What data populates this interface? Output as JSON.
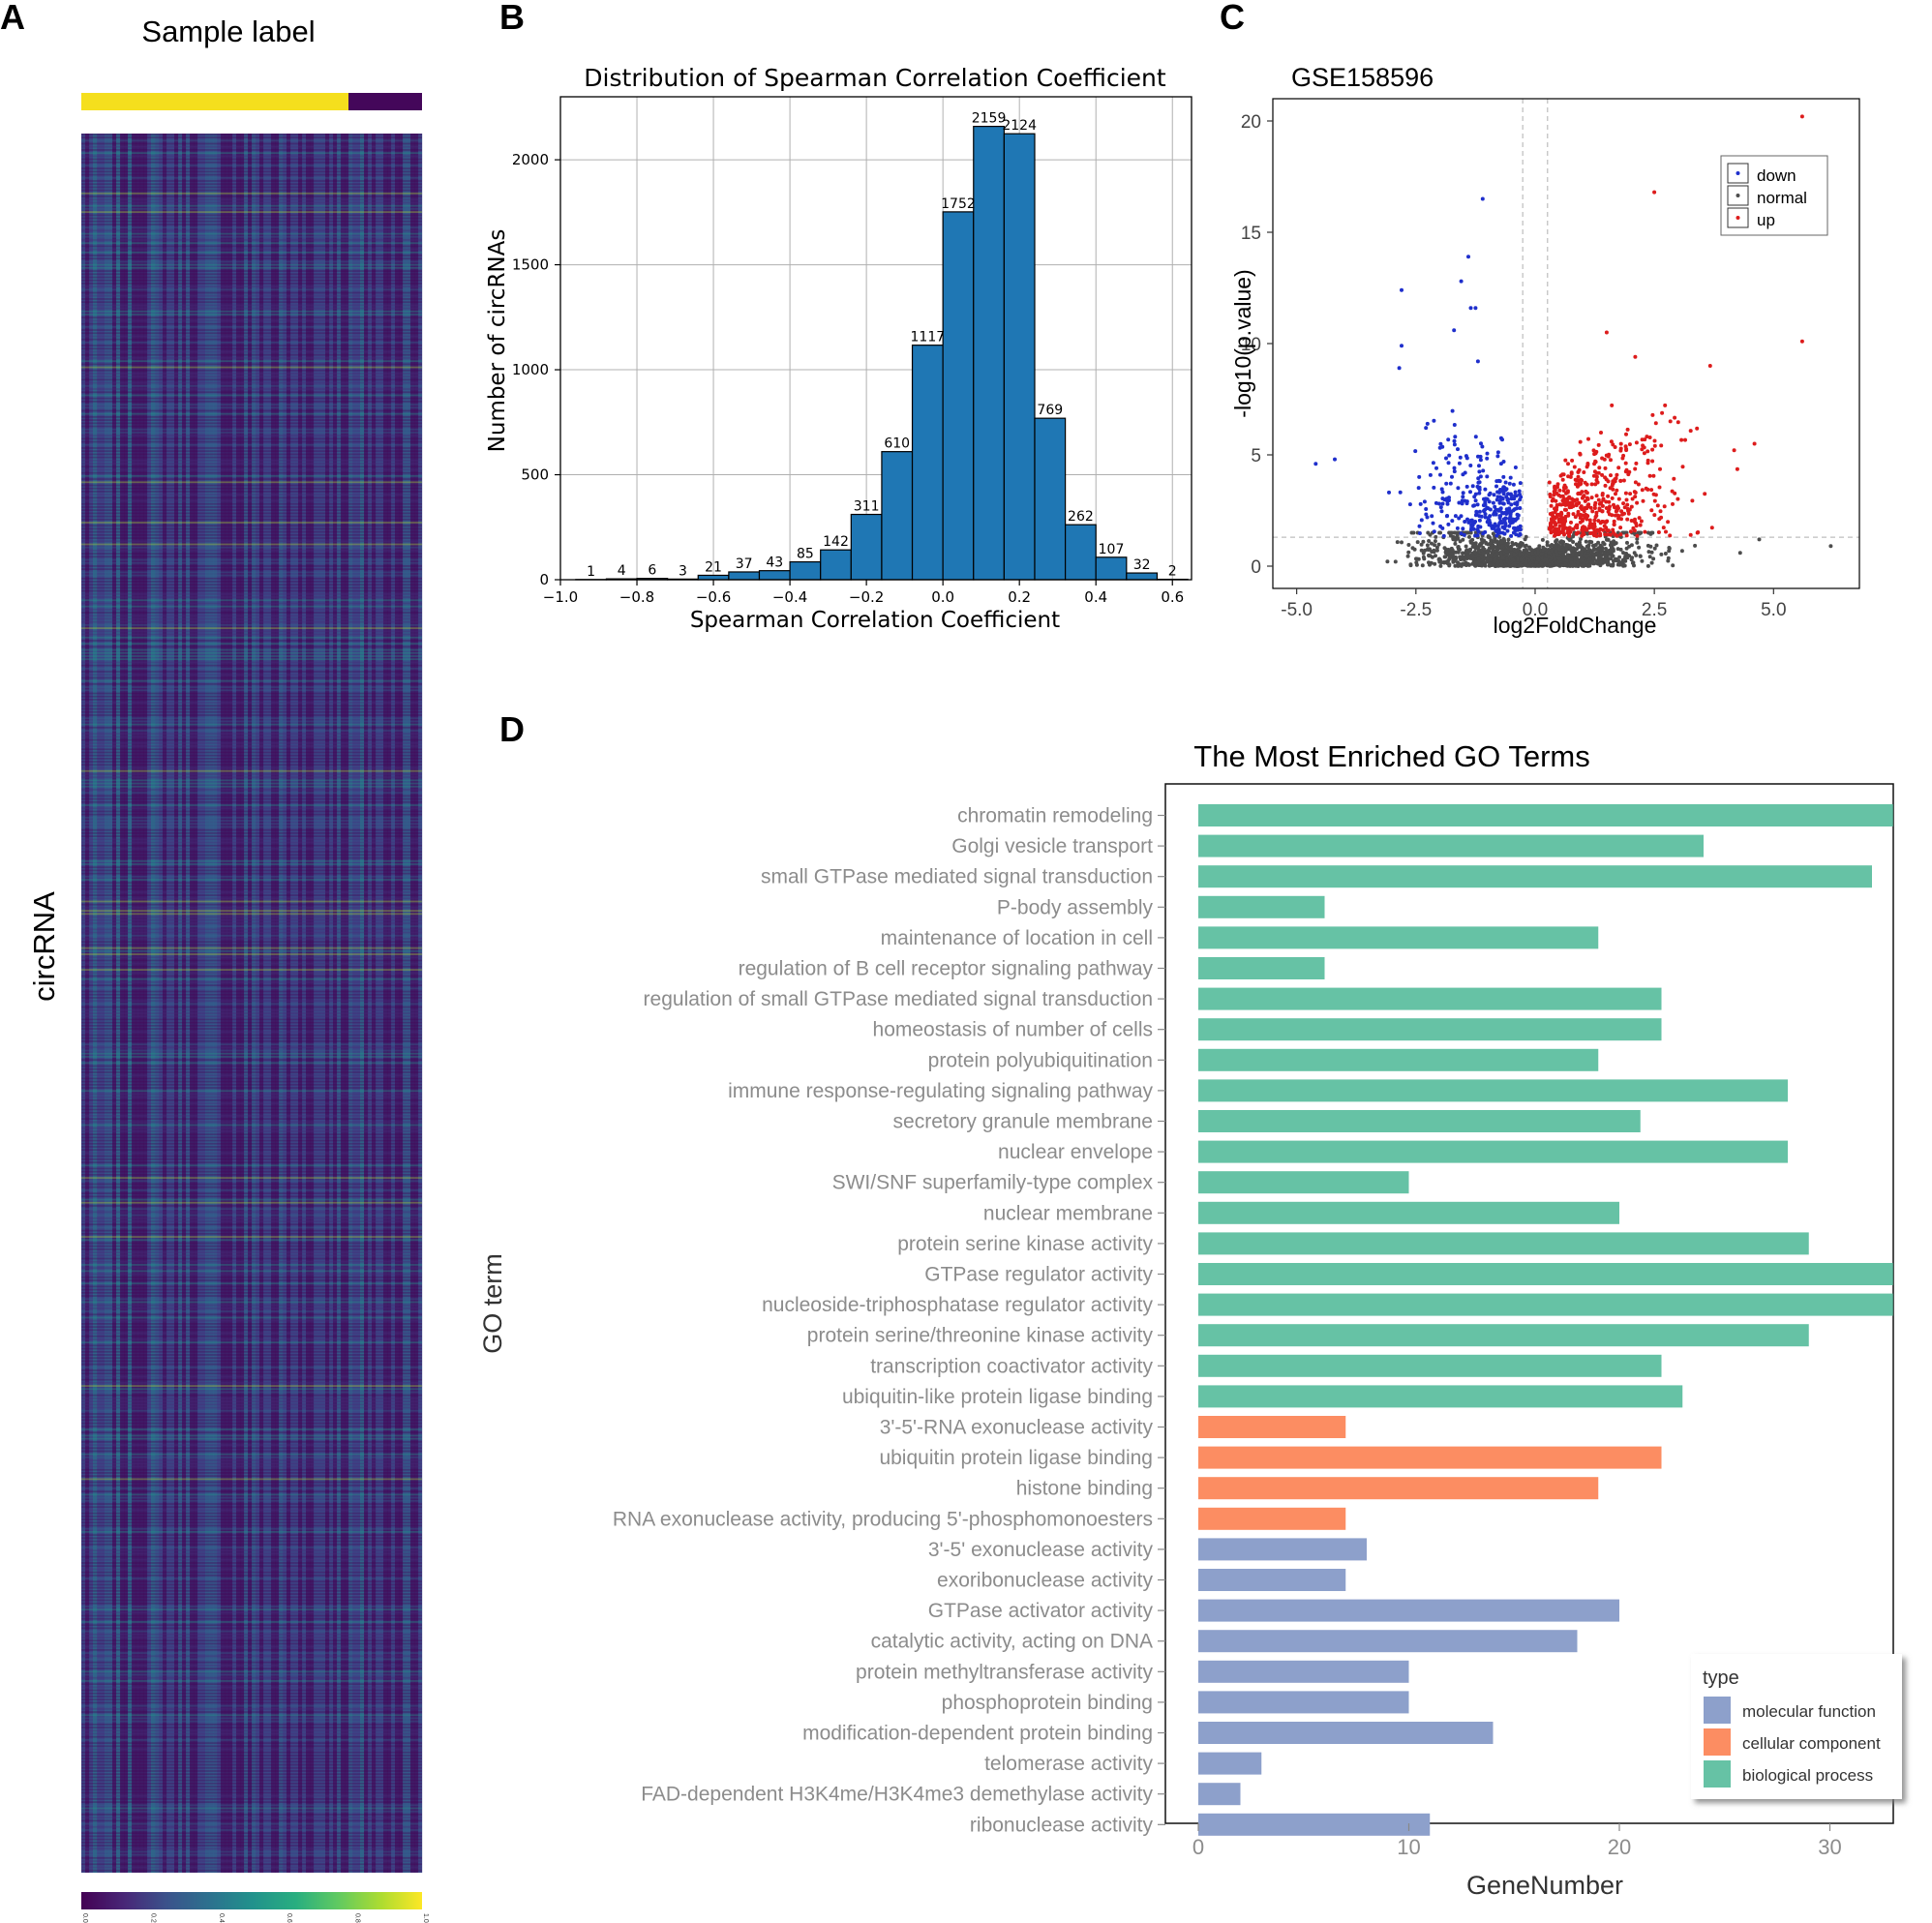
{
  "panel_labels": {
    "a": "A",
    "b": "B",
    "c": "C",
    "d": "D"
  },
  "colors": {
    "label_yellow": "#f5df1d",
    "label_purple": "#44075a",
    "hist_bar": "#1f77b4",
    "down": "#1f2fcc",
    "up": "#dd1c1c",
    "normal": "#4d4d4d",
    "bp": "#66c2a5",
    "cc": "#fc8d62",
    "mf": "#8da0cb"
  },
  "chart_data": [
    {
      "id": "A",
      "type": "heatmap",
      "title": "Sample label",
      "ylabel": "circRNA",
      "sample_label_split": 0.78,
      "colorbar_ticks": [
        "0.0",
        "0.2",
        "0.4",
        "0.6",
        "0.8",
        "1.0"
      ],
      "value_range": [
        0,
        1
      ],
      "colormap": "viridis"
    },
    {
      "id": "B",
      "type": "bar",
      "title": "Distribution of Spearman Correlation Coefficient",
      "xlabel": "Spearman Correlation Coefficient",
      "ylabel": "Number of circRNAs",
      "xlim": [
        -1.0,
        0.65
      ],
      "ylim": [
        0,
        2300
      ],
      "bin_width": 0.08,
      "bin_centers": [
        -0.92,
        -0.84,
        -0.76,
        -0.68,
        -0.6,
        -0.52,
        -0.44,
        -0.36,
        -0.28,
        -0.2,
        -0.12,
        -0.04,
        0.04,
        0.12,
        0.2,
        0.28,
        0.36,
        0.44,
        0.52,
        0.6
      ],
      "values": [
        1,
        4,
        6,
        3,
        21,
        37,
        43,
        85,
        142,
        311,
        610,
        1117,
        1752,
        2159,
        2124,
        769,
        262,
        107,
        32,
        2
      ],
      "xticks": [
        "-1.0",
        "-0.8",
        "-0.6",
        "-0.4",
        "-0.2",
        "0.0",
        "0.2",
        "0.4",
        "0.6"
      ],
      "yticks": [
        "0",
        "500",
        "1000",
        "1500",
        "2000"
      ],
      "grid": true
    },
    {
      "id": "C",
      "type": "scatter",
      "title": "GSE158596",
      "xlabel": "log2FoldChange",
      "ylabel": "-log10(p.value)",
      "xlim": [
        -5.5,
        6.8
      ],
      "ylim": [
        -1,
        21
      ],
      "xticks": [
        "-5.0",
        "-2.5",
        "0.0",
        "2.5",
        "5.0"
      ],
      "yticks": [
        "0",
        "5",
        "10",
        "15",
        "20"
      ],
      "fc_threshold": 0.26,
      "p_threshold_line": 1.3,
      "legend": [
        "down",
        "normal",
        "up"
      ],
      "legend_position": "top-right",
      "series": [
        {
          "name": "down",
          "approx_count": 330
        },
        {
          "name": "normal",
          "approx_count": 1500
        },
        {
          "name": "up",
          "approx_count": 520
        }
      ],
      "notable_points": [
        [
          5.6,
          20.2
        ],
        [
          2.5,
          16.8
        ],
        [
          -1.1,
          16.5
        ],
        [
          -1.4,
          13.9
        ],
        [
          -1.55,
          12.8
        ],
        [
          -2.8,
          12.4
        ],
        [
          -1.35,
          11.6
        ],
        [
          -1.25,
          11.6
        ],
        [
          -2.8,
          9.9
        ],
        [
          -2.85,
          8.9
        ],
        [
          -1.7,
          10.6
        ],
        [
          -1.2,
          9.2
        ],
        [
          5.6,
          10.1
        ],
        [
          1.5,
          10.5
        ],
        [
          2.1,
          9.4
        ],
        [
          4.6,
          5.5
        ],
        [
          -4.6,
          4.6
        ],
        [
          -4.2,
          4.8
        ],
        [
          0.3,
          1.7
        ],
        [
          6.2,
          0.9
        ],
        [
          4.3,
          0.6
        ],
        [
          4.7,
          1.2
        ]
      ]
    },
    {
      "id": "D",
      "type": "bar",
      "orientation": "horizontal",
      "title": "The Most Enriched GO Terms",
      "xlabel": "GeneNumber",
      "ylabel": "GO term",
      "xlim": [
        0,
        33
      ],
      "xticks": [
        "0",
        "10",
        "20",
        "30"
      ],
      "legend_title": "type",
      "legend_position": "bottom-right",
      "legend": [
        {
          "label": "molecular function",
          "key": "mf"
        },
        {
          "label": "cellular component",
          "key": "cc"
        },
        {
          "label": "biological process",
          "key": "bp"
        }
      ],
      "categories": [
        "chromatin remodeling",
        "Golgi vesicle transport",
        "small GTPase mediated signal transduction",
        "P-body assembly",
        "maintenance of location in cell",
        "regulation of B cell receptor signaling pathway",
        "regulation of small GTPase mediated signal transduction",
        "homeostasis of number of cells",
        "protein polyubiquitination",
        "immune response-regulating signaling pathway",
        "secretory granule membrane",
        "nuclear envelope",
        "SWI/SNF superfamily-type complex",
        "nuclear membrane",
        "protein serine kinase activity",
        "GTPase regulator activity",
        "nucleoside-triphosphatase regulator activity",
        "protein serine/threonine kinase activity",
        "transcription coactivator activity",
        "ubiquitin-like protein ligase binding",
        "3'-5'-RNA exonuclease activity",
        "ubiquitin protein ligase binding",
        "histone binding",
        "RNA exonuclease activity, producing 5'-phosphomonoesters",
        "3'-5' exonuclease activity",
        "exoribonuclease activity",
        "GTPase activator activity",
        "catalytic activity, acting on DNA",
        "protein methyltransferase activity",
        "phosphoprotein binding",
        "modification-dependent protein binding",
        "telomerase activity",
        "FAD-dependent H3K4me/H3K4me3 demethylase activity",
        "ribonuclease activity"
      ],
      "values": [
        33,
        24,
        32,
        6,
        19,
        6,
        22,
        22,
        19,
        28,
        21,
        28,
        10,
        20,
        29,
        33,
        33,
        29,
        22,
        23,
        7,
        22,
        19,
        7,
        8,
        7,
        20,
        18,
        10,
        10,
        14,
        3,
        2,
        11
      ],
      "types": [
        "bp",
        "bp",
        "bp",
        "bp",
        "bp",
        "bp",
        "bp",
        "bp",
        "bp",
        "bp",
        "bp",
        "bp",
        "bp",
        "bp",
        "bp",
        "bp",
        "bp",
        "bp",
        "bp",
        "bp",
        "cc",
        "cc",
        "cc",
        "cc",
        "mf",
        "mf",
        "mf",
        "mf",
        "mf",
        "mf",
        "mf",
        "mf",
        "mf",
        "mf"
      ]
    }
  ]
}
